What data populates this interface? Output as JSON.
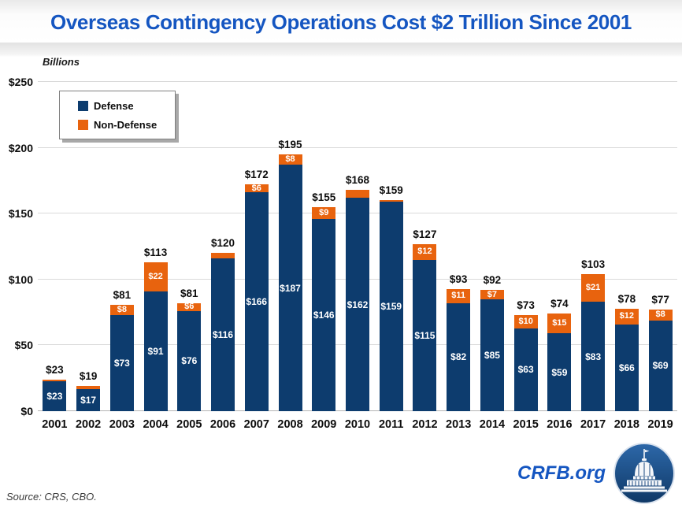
{
  "title": "Overseas Contingency Operations Cost $2 Trillion Since 2001",
  "y_axis": {
    "unit_label": "Billions",
    "ticks": [
      {
        "value": 0,
        "label": "$0"
      },
      {
        "value": 50,
        "label": "$50"
      },
      {
        "value": 100,
        "label": "$100"
      },
      {
        "value": 150,
        "label": "$150"
      },
      {
        "value": 200,
        "label": "$200"
      },
      {
        "value": 250,
        "label": "$250"
      }
    ]
  },
  "legend": {
    "items": [
      {
        "label": "Defense",
        "color": "#0d3c6e"
      },
      {
        "label": "Non-Defense",
        "color": "#e8630e"
      }
    ]
  },
  "colors": {
    "defense": "#0d3c6e",
    "non_defense": "#e8630e",
    "title_blue": "#1556c1",
    "gridline": "#d9d9d9"
  },
  "chart_data": {
    "type": "bar",
    "stacked": true,
    "title": "Overseas Contingency Operations Cost $2 Trillion Since 2001",
    "xlabel": "",
    "ylabel": "Billions",
    "ylim": [
      0,
      250
    ],
    "grid": true,
    "legend_position": "upper-left",
    "categories": [
      "2001",
      "2002",
      "2003",
      "2004",
      "2005",
      "2006",
      "2007",
      "2008",
      "2009",
      "2010",
      "2011",
      "2012",
      "2013",
      "2014",
      "2015",
      "2016",
      "2017",
      "2018",
      "2019"
    ],
    "series": [
      {
        "name": "Defense",
        "color": "#0d3c6e",
        "values": [
          23,
          17,
          73,
          91,
          76,
          116,
          166,
          187,
          146,
          162,
          159,
          115,
          82,
          85,
          63,
          59,
          83,
          66,
          69
        ]
      },
      {
        "name": "Non-Defense",
        "color": "#e8630e",
        "values": [
          0,
          2,
          8,
          22,
          6,
          4,
          6,
          8,
          9,
          6,
          0,
          12,
          11,
          7,
          10,
          15,
          21,
          12,
          8
        ]
      }
    ],
    "totals": [
      23,
      19,
      81,
      113,
      81,
      120,
      172,
      195,
      155,
      168,
      159,
      127,
      93,
      92,
      73,
      74,
      103,
      78,
      77
    ],
    "bar_labels": {
      "total": [
        "$23",
        "$19",
        "$81",
        "$113",
        "$81",
        "$120",
        "$172",
        "$195",
        "$155",
        "$168",
        "$159",
        "$127",
        "$93",
        "$92",
        "$73",
        "$74",
        "$103",
        "$78",
        "$77"
      ],
      "defense": [
        "$23",
        "$17",
        "$73",
        "$91",
        "$76",
        "$116",
        "$166",
        "$187",
        "$146",
        "$162",
        "$159",
        "$115",
        "$82",
        "$85",
        "$63",
        "$59",
        "$83",
        "$66",
        "$69"
      ],
      "non_defense": [
        "",
        "",
        "$8",
        "$22",
        "$6",
        "",
        "$6",
        "$8",
        "$9",
        "",
        "",
        "$12",
        "$11",
        "$7",
        "$10",
        "$15",
        "$21",
        "$12",
        "$8"
      ]
    }
  },
  "footer": {
    "source": "Source: CRS, CBO.",
    "brand": "CRFB.org",
    "logo": "capitol-dome-logo"
  }
}
